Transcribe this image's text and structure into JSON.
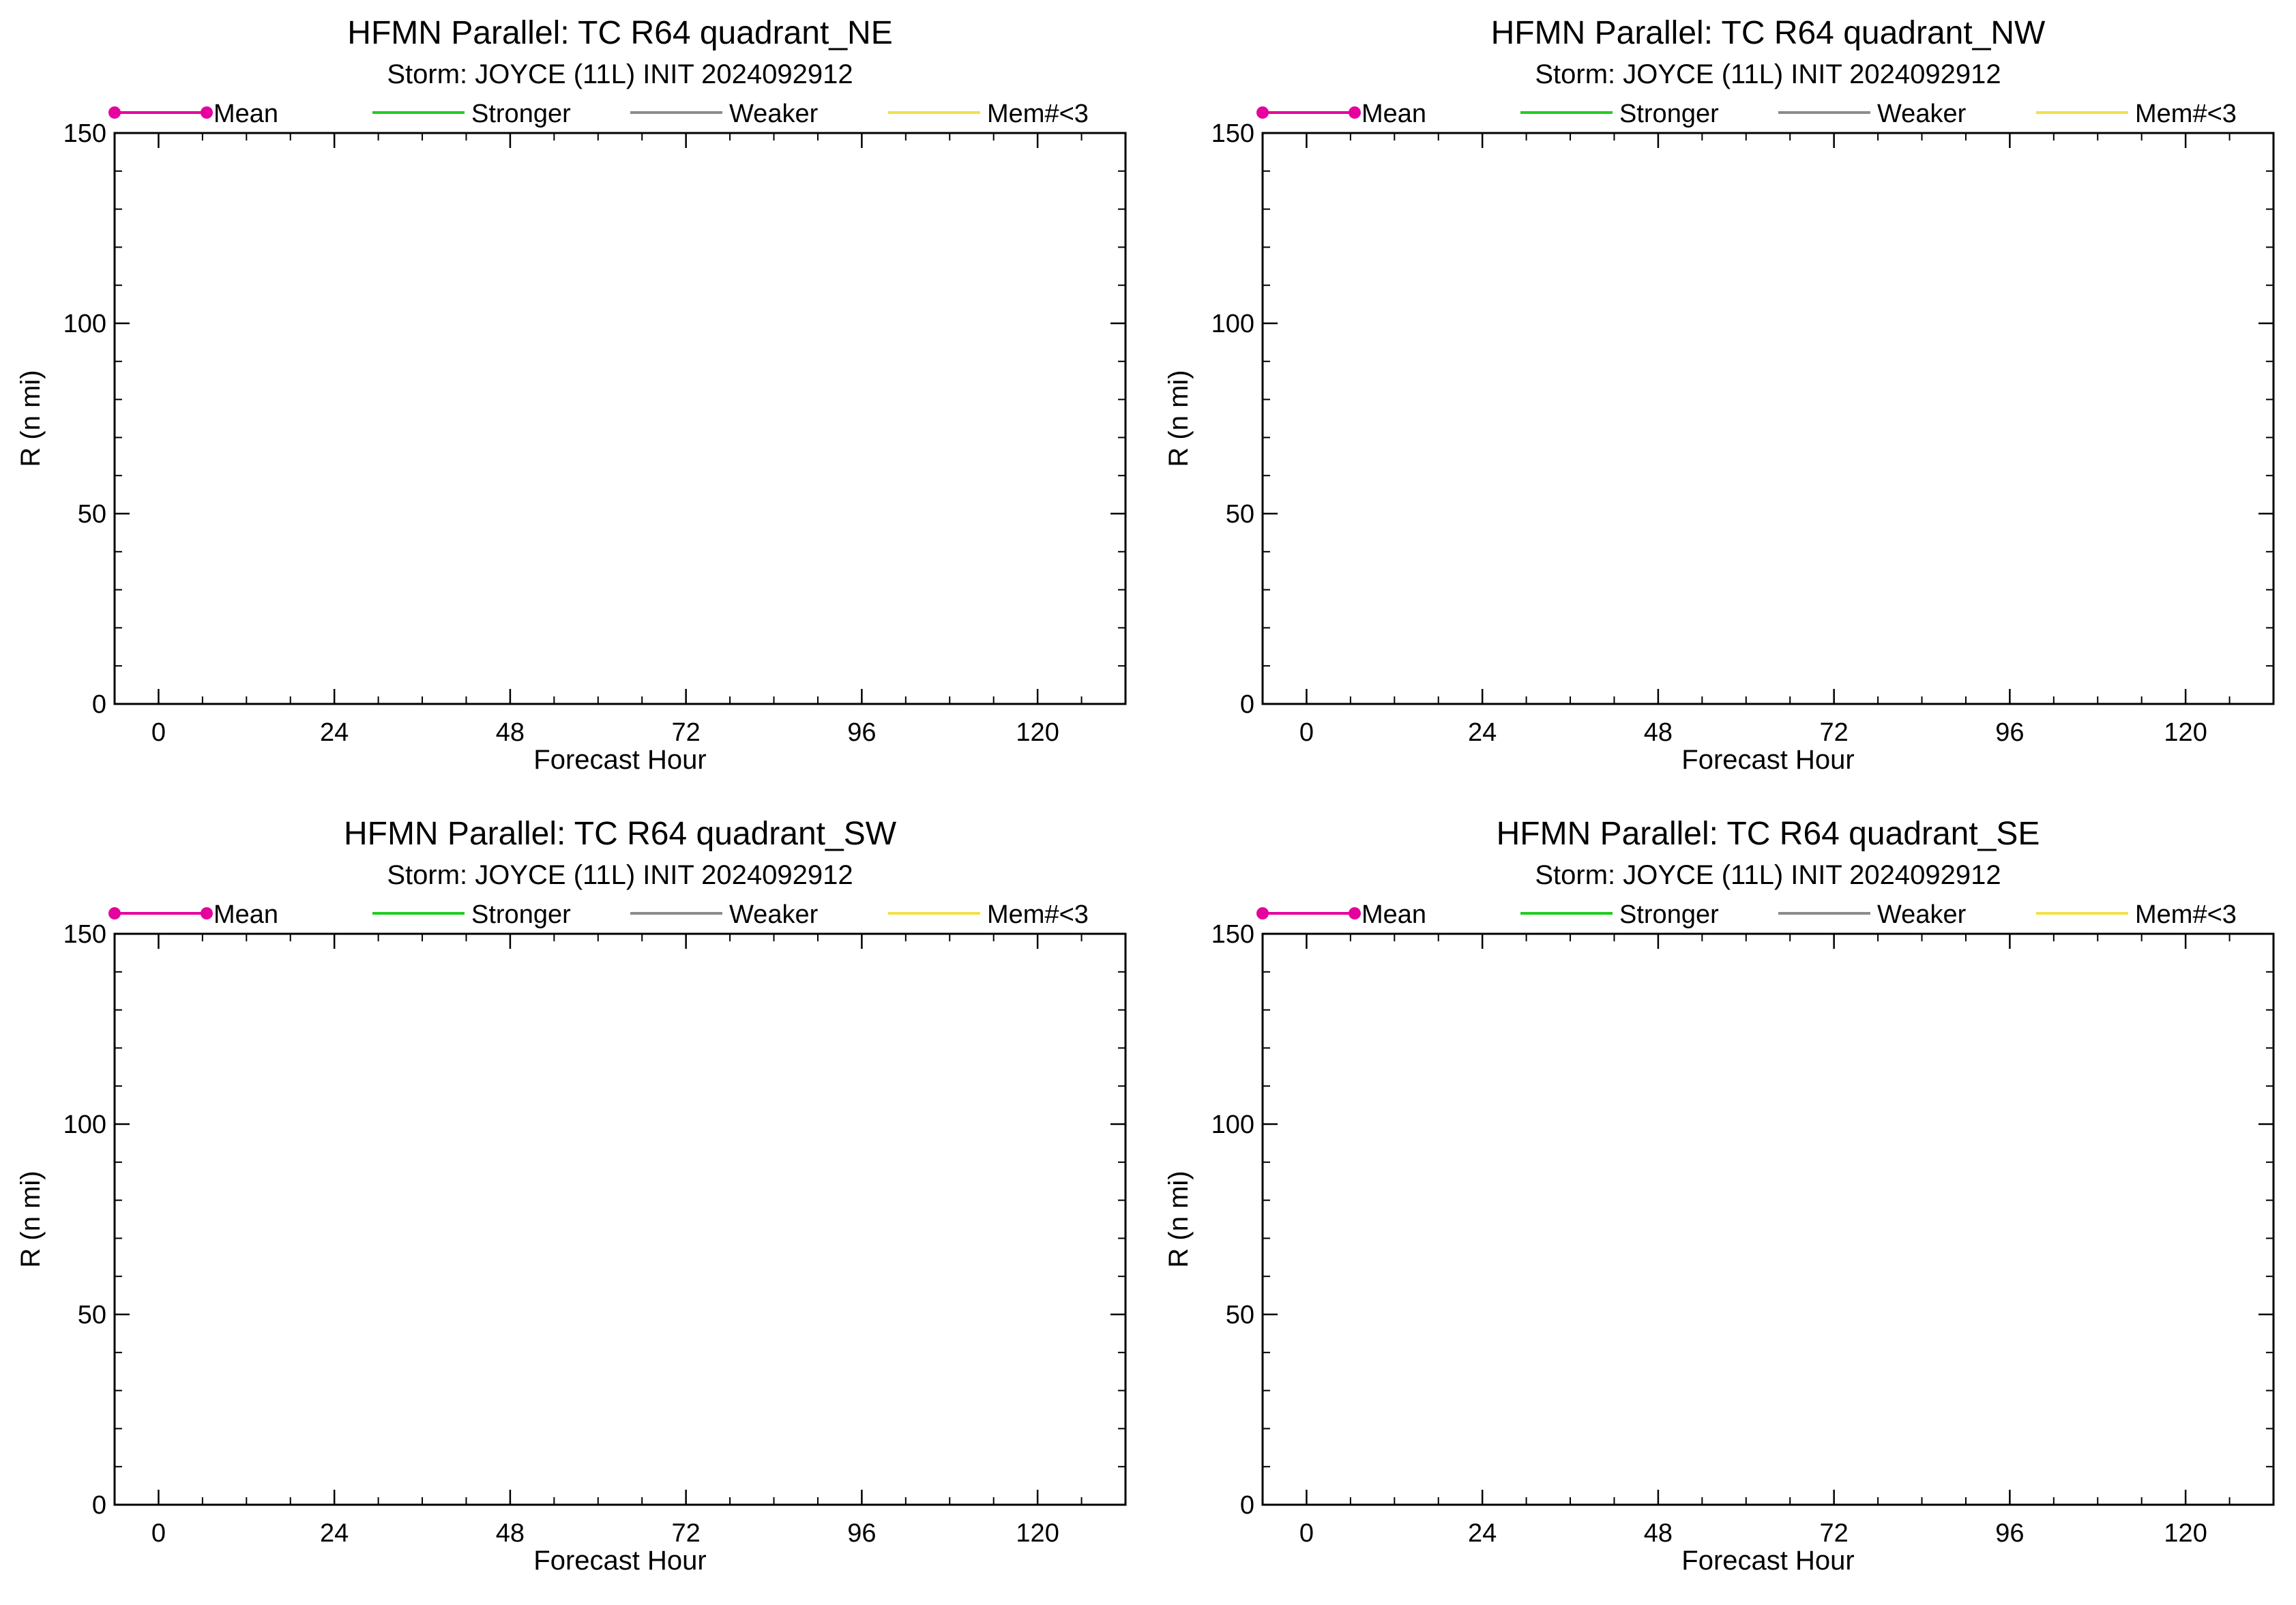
{
  "chart_data": [
    {
      "type": "line",
      "title": "HFMN Parallel: TC  R64 quadrant_NE",
      "subtitle": "Storm: JOYCE (11L) INIT 2024092912",
      "xlabel": "Forecast Hour",
      "ylabel": "R (n mi)",
      "xlim": [
        -6,
        132
      ],
      "ylim": [
        0,
        150
      ],
      "xticks": [
        0,
        24,
        48,
        72,
        96,
        120
      ],
      "yticks": [
        0,
        50,
        100,
        150
      ],
      "grid": false,
      "legend_position": "top",
      "series": [
        {
          "name": "Mean",
          "color": "#e6009e",
          "marker": "dot",
          "x": [],
          "y": []
        },
        {
          "name": "Stronger",
          "color": "#22cc22",
          "marker": "none",
          "x": [],
          "y": []
        },
        {
          "name": "Weaker",
          "color": "#8c8c8c",
          "marker": "none",
          "x": [],
          "y": []
        },
        {
          "name": "Mem#<3",
          "color": "#f2e04a",
          "marker": "none",
          "x": [],
          "y": []
        }
      ]
    },
    {
      "type": "line",
      "title": "HFMN Parallel: TC  R64 quadrant_NW",
      "subtitle": "Storm: JOYCE (11L) INIT 2024092912",
      "xlabel": "Forecast Hour",
      "ylabel": "R (n mi)",
      "xlim": [
        -6,
        132
      ],
      "ylim": [
        0,
        150
      ],
      "xticks": [
        0,
        24,
        48,
        72,
        96,
        120
      ],
      "yticks": [
        0,
        50,
        100,
        150
      ],
      "grid": false,
      "legend_position": "top",
      "series": [
        {
          "name": "Mean",
          "color": "#e6009e",
          "marker": "dot",
          "x": [],
          "y": []
        },
        {
          "name": "Stronger",
          "color": "#22cc22",
          "marker": "none",
          "x": [],
          "y": []
        },
        {
          "name": "Weaker",
          "color": "#8c8c8c",
          "marker": "none",
          "x": [],
          "y": []
        },
        {
          "name": "Mem#<3",
          "color": "#f2e04a",
          "marker": "none",
          "x": [],
          "y": []
        }
      ]
    },
    {
      "type": "line",
      "title": "HFMN Parallel: TC  R64 quadrant_SW",
      "subtitle": "Storm: JOYCE (11L) INIT 2024092912",
      "xlabel": "Forecast Hour",
      "ylabel": "R (n mi)",
      "xlim": [
        -6,
        132
      ],
      "ylim": [
        0,
        150
      ],
      "xticks": [
        0,
        24,
        48,
        72,
        96,
        120
      ],
      "yticks": [
        0,
        50,
        100,
        150
      ],
      "grid": false,
      "legend_position": "top",
      "series": [
        {
          "name": "Mean",
          "color": "#e6009e",
          "marker": "dot",
          "x": [],
          "y": []
        },
        {
          "name": "Stronger",
          "color": "#22cc22",
          "marker": "none",
          "x": [],
          "y": []
        },
        {
          "name": "Weaker",
          "color": "#8c8c8c",
          "marker": "none",
          "x": [],
          "y": []
        },
        {
          "name": "Mem#<3",
          "color": "#f2e04a",
          "marker": "none",
          "x": [],
          "y": []
        }
      ]
    },
    {
      "type": "line",
      "title": "HFMN Parallel: TC  R64 quadrant_SE",
      "subtitle": "Storm: JOYCE (11L) INIT 2024092912",
      "xlabel": "Forecast Hour",
      "ylabel": "R (n mi)",
      "xlim": [
        -6,
        132
      ],
      "ylim": [
        0,
        150
      ],
      "xticks": [
        0,
        24,
        48,
        72,
        96,
        120
      ],
      "yticks": [
        0,
        50,
        100,
        150
      ],
      "grid": false,
      "legend_position": "top",
      "series": [
        {
          "name": "Mean",
          "color": "#e6009e",
          "marker": "dot",
          "x": [],
          "y": []
        },
        {
          "name": "Stronger",
          "color": "#22cc22",
          "marker": "none",
          "x": [],
          "y": []
        },
        {
          "name": "Weaker",
          "color": "#8c8c8c",
          "marker": "none",
          "x": [],
          "y": []
        },
        {
          "name": "Mem#<3",
          "color": "#f2e04a",
          "marker": "none",
          "x": [],
          "y": []
        }
      ]
    }
  ]
}
